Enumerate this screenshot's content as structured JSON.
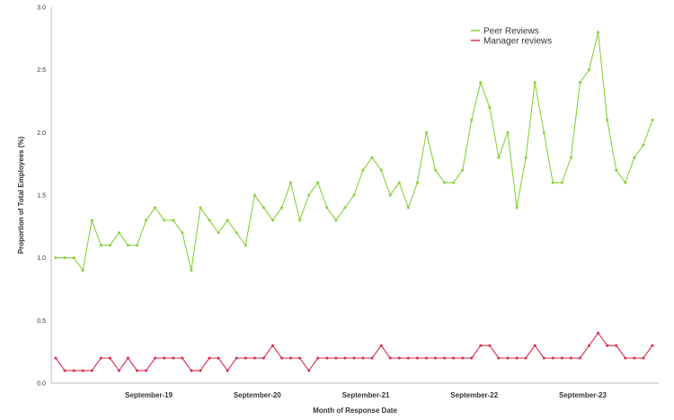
{
  "chart_data": {
    "type": "line",
    "title": "",
    "xlabel": "Month of Response Date",
    "ylabel": "Proportion of Total Employees (%)",
    "ylim": [
      0,
      3
    ],
    "y_ticks": [
      "0.0",
      "0.5",
      "1.0",
      "1.5",
      "2.0",
      "2.5",
      "3.0"
    ],
    "x_ticks": [
      {
        "label": "September-19",
        "index": 10
      },
      {
        "label": "September-20",
        "index": 22
      },
      {
        "label": "September-21",
        "index": 34
      },
      {
        "label": "September-22",
        "index": 46
      },
      {
        "label": "September-23",
        "index": 58
      }
    ],
    "grid": false,
    "legend_position": "top-right",
    "series": [
      {
        "name": "Peer Reviews",
        "color": "#88d13a",
        "values": [
          1.0,
          1.0,
          1.0,
          0.9,
          1.3,
          1.1,
          1.1,
          1.2,
          1.1,
          1.1,
          1.3,
          1.4,
          1.3,
          1.3,
          1.2,
          0.9,
          1.4,
          1.3,
          1.2,
          1.3,
          1.2,
          1.1,
          1.5,
          1.4,
          1.3,
          1.4,
          1.6,
          1.3,
          1.5,
          1.6,
          1.4,
          1.3,
          1.4,
          1.5,
          1.7,
          1.8,
          1.7,
          1.5,
          1.6,
          1.4,
          1.6,
          2.0,
          1.7,
          1.6,
          1.6,
          1.7,
          2.1,
          2.4,
          2.2,
          1.8,
          2.0,
          1.4,
          1.8,
          2.4,
          2.0,
          1.6,
          1.6,
          1.8,
          2.4,
          2.5,
          2.8,
          2.1,
          1.7,
          1.6,
          1.8,
          1.9,
          2.1
        ]
      },
      {
        "name": "Manager reviews",
        "color": "#d62f4b",
        "values": [
          0.2,
          0.1,
          0.1,
          0.1,
          0.1,
          0.2,
          0.2,
          0.1,
          0.2,
          0.1,
          0.1,
          0.2,
          0.2,
          0.2,
          0.2,
          0.1,
          0.1,
          0.2,
          0.2,
          0.1,
          0.2,
          0.2,
          0.2,
          0.2,
          0.3,
          0.2,
          0.2,
          0.2,
          0.1,
          0.2,
          0.2,
          0.2,
          0.2,
          0.2,
          0.2,
          0.2,
          0.3,
          0.2,
          0.2,
          0.2,
          0.2,
          0.2,
          0.2,
          0.2,
          0.2,
          0.2,
          0.2,
          0.3,
          0.3,
          0.2,
          0.2,
          0.2,
          0.2,
          0.3,
          0.2,
          0.2,
          0.2,
          0.2,
          0.2,
          0.3,
          0.4,
          0.3,
          0.3,
          0.2,
          0.2,
          0.2,
          0.3
        ]
      }
    ]
  }
}
